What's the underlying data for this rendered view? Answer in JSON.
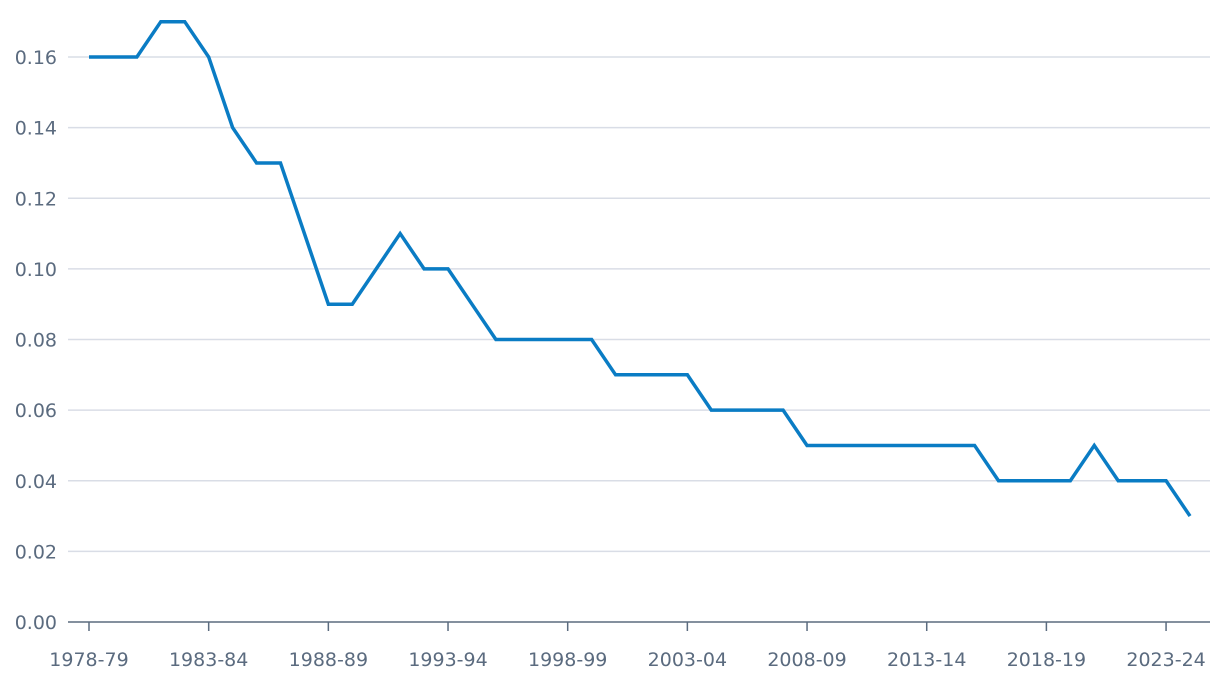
{
  "chart_data": {
    "type": "line",
    "title": "",
    "xlabel": "",
    "ylabel": "",
    "x": [
      "1978-79",
      "1979-80",
      "1980-81",
      "1981-82",
      "1982-83",
      "1983-84",
      "1984-85",
      "1985-86",
      "1986-87",
      "1987-88",
      "1988-89",
      "1989-90",
      "1990-91",
      "1991-92",
      "1992-93",
      "1993-94",
      "1994-95",
      "1995-96",
      "1996-97",
      "1997-98",
      "1998-99",
      "1999-00",
      "2000-01",
      "2001-02",
      "2002-03",
      "2003-04",
      "2004-05",
      "2005-06",
      "2006-07",
      "2007-08",
      "2008-09",
      "2009-10",
      "2010-11",
      "2011-12",
      "2012-13",
      "2013-14",
      "2014-15",
      "2015-16",
      "2016-17",
      "2017-18",
      "2018-19",
      "2019-20",
      "2020-21",
      "2021-22",
      "2022-23",
      "2023-24",
      "2024-25"
    ],
    "series": [
      {
        "values": [
          0.16,
          0.16,
          0.16,
          0.17,
          0.17,
          0.16,
          0.14,
          0.13,
          0.13,
          0.11,
          0.09,
          0.09,
          0.1,
          0.11,
          0.1,
          0.1,
          0.09,
          0.08,
          0.08,
          0.08,
          0.08,
          0.08,
          0.07,
          0.07,
          0.07,
          0.07,
          0.06,
          0.06,
          0.06,
          0.06,
          0.05,
          0.05,
          0.05,
          0.05,
          0.05,
          0.05,
          0.05,
          0.05,
          0.04,
          0.04,
          0.04,
          0.04,
          0.05,
          0.04,
          0.04,
          0.04,
          0.03
        ]
      }
    ],
    "x_tick_labels": [
      "1978-79",
      "1983-84",
      "1988-89",
      "1993-94",
      "1998-99",
      "2003-04",
      "2008-09",
      "2013-14",
      "2018-19",
      "2023-24"
    ],
    "y_ticks": [
      "0.00",
      "0.02",
      "0.04",
      "0.06",
      "0.08",
      "0.10",
      "0.12",
      "0.14",
      "0.16"
    ],
    "ylim": [
      0,
      0.16
    ],
    "grid": true,
    "legend": "none",
    "colors": {
      "line": "#0a7cc4",
      "grid": "#d9dde6",
      "axis": "#5b6b7f",
      "text": "#5b6b7f"
    }
  }
}
